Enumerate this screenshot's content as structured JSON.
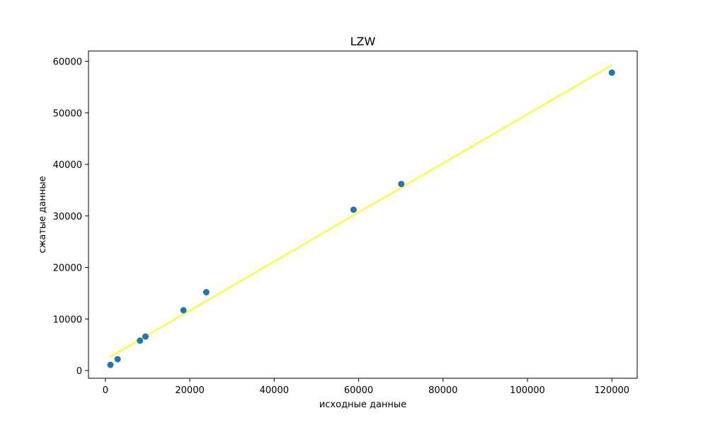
{
  "chart_data": {
    "type": "scatter",
    "title": "LZW",
    "xlabel": "исходные данные",
    "ylabel": "сжатые данные",
    "xlim": [
      -4000,
      126000
    ],
    "ylim": [
      -1500,
      62000
    ],
    "xticks": [
      0,
      20000,
      40000,
      60000,
      80000,
      100000,
      120000
    ],
    "yticks": [
      0,
      10000,
      20000,
      30000,
      40000,
      50000,
      60000
    ],
    "xtick_labels": [
      "0",
      "20000",
      "40000",
      "60000",
      "80000",
      "100000",
      "120000"
    ],
    "ytick_labels": [
      "0",
      "10000",
      "20000",
      "30000",
      "40000",
      "50000",
      "60000"
    ],
    "grid": false,
    "series": [
      {
        "type": "scatter",
        "color": "#1f77b4",
        "points": [
          {
            "x": 1200,
            "y": 1100
          },
          {
            "x": 2900,
            "y": 2200
          },
          {
            "x": 8200,
            "y": 5800
          },
          {
            "x": 9500,
            "y": 6600
          },
          {
            "x": 18500,
            "y": 11700
          },
          {
            "x": 23900,
            "y": 15200
          },
          {
            "x": 58800,
            "y": 31200
          },
          {
            "x": 70100,
            "y": 36200
          },
          {
            "x": 120000,
            "y": 57800
          }
        ]
      },
      {
        "type": "line",
        "color": "#ffff00",
        "points": [
          {
            "x": 1200,
            "y": 2700
          },
          {
            "x": 120000,
            "y": 59300
          }
        ]
      }
    ]
  }
}
